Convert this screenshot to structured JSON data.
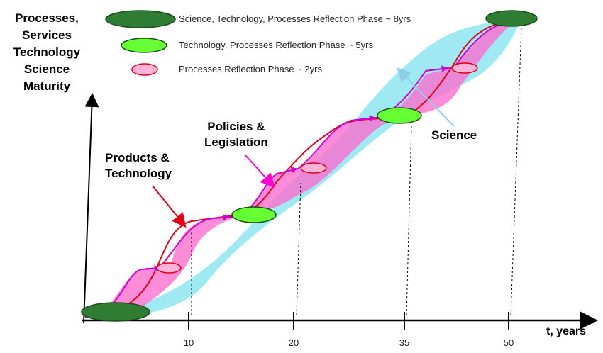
{
  "y_axis_label": [
    "Processes,",
    "Services",
    "Technology",
    "Science",
    "Maturity"
  ],
  "x_axis_label": "t, years",
  "x_ticks": [
    "10",
    "20",
    "35",
    "50"
  ],
  "legend": [
    {
      "label": "Science, Technology, Processes Reflection Phase ~ 8yrs",
      "color": "#2e7d32"
    },
    {
      "label": "Technology, Processes Reflection Phase ~ 5yrs",
      "color": "#66ff33"
    },
    {
      "label": "Processes Reflection Phase ~ 2yrs",
      "color": "#ffb3d9"
    }
  ],
  "annotations": {
    "products": [
      "Products &",
      "Technology"
    ],
    "policies": [
      "Policies &",
      "Legislation"
    ],
    "science": "Science"
  },
  "colors": {
    "science_band": "#8ee6f0",
    "process_band": "#ff66cc",
    "technology_line": "#e0001a",
    "process_line": "#cc00cc",
    "phase_large": "#2e7d32",
    "phase_medium": "#66ff33",
    "phase_small": "#ffb3d9"
  }
}
